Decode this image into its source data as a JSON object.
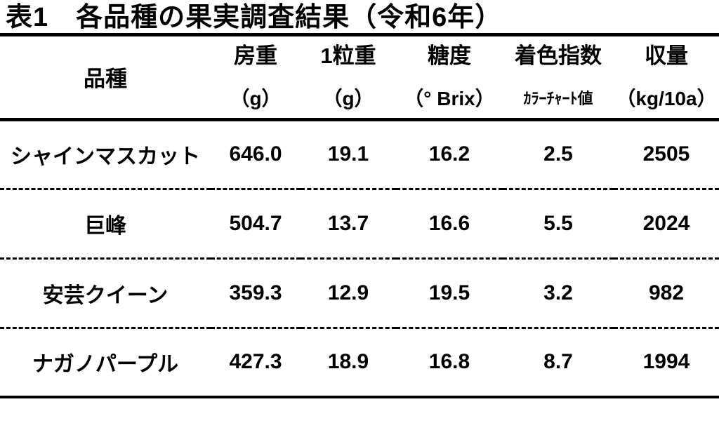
{
  "title": "表1　各品種の果実調査結果（令和6年）",
  "colors": {
    "background": "#ffffff",
    "text": "#000000",
    "rule": "#000000"
  },
  "table": {
    "columns": [
      {
        "label": "品種",
        "unit": ""
      },
      {
        "label": "房重",
        "unit": "（g）"
      },
      {
        "label": "1粒重",
        "unit": "（g）"
      },
      {
        "label": "糖度",
        "unit": "（° Brix）"
      },
      {
        "label": "着色指数",
        "unit": "ｶﾗｰﾁｬｰﾄ値"
      },
      {
        "label": "収量",
        "unit": "（kg/10a）"
      }
    ],
    "rows": [
      {
        "variety": "シャインマスカット",
        "values": [
          "646.0",
          "19.1",
          "16.2",
          "2.5",
          "2505"
        ]
      },
      {
        "variety": "巨峰",
        "values": [
          "504.7",
          "13.7",
          "16.6",
          "5.5",
          "2024"
        ]
      },
      {
        "variety": "安芸クイーン",
        "values": [
          "359.3",
          "12.9",
          "19.5",
          "3.2",
          "982"
        ]
      },
      {
        "variety": "ナガノパープル",
        "values": [
          "427.3",
          "18.9",
          "16.8",
          "8.7",
          "1994"
        ]
      }
    ]
  }
}
